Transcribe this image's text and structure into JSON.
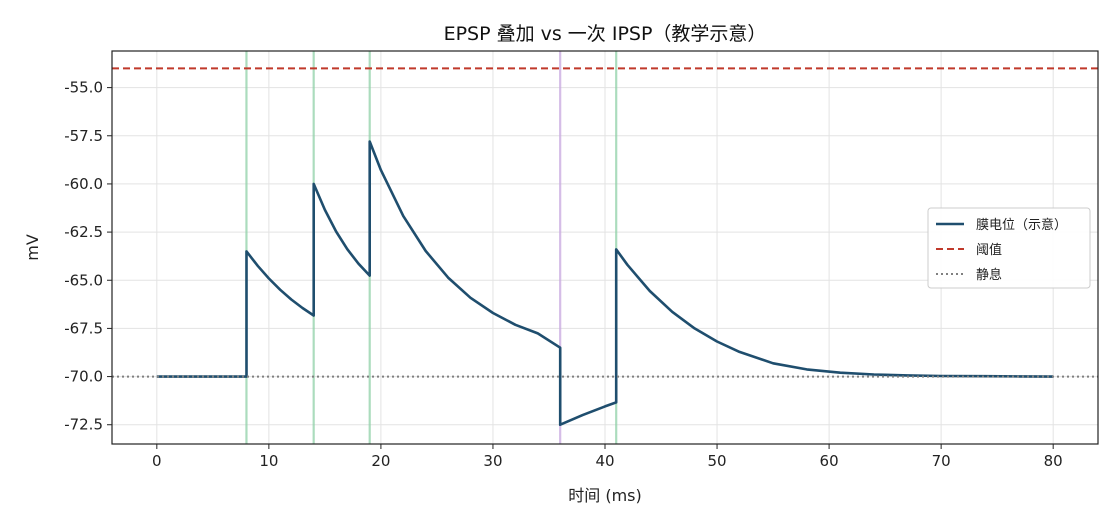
{
  "chart_data": {
    "type": "line",
    "title": "EPSP 叠加 vs 一次 IPSP（教学示意）",
    "xlabel": "时间 (ms)",
    "ylabel": "mV",
    "xlim": [
      -4,
      84
    ],
    "ylim": [
      -73.5,
      -53.1
    ],
    "x_ticks": [
      0,
      10,
      20,
      30,
      40,
      50,
      60,
      70,
      80
    ],
    "x_tick_labels": [
      "0",
      "10",
      "20",
      "30",
      "40",
      "50",
      "60",
      "70",
      "80"
    ],
    "y_ticks": [
      -55.0,
      -57.5,
      -60.0,
      -62.5,
      -65.0,
      -67.5,
      -70.0,
      -72.5
    ],
    "y_tick_labels": [
      "-55.0",
      "-57.5",
      "-60.0",
      "-62.5",
      "-65.0",
      "-67.5",
      "-70.0",
      "-72.5"
    ],
    "grid": true,
    "legend_position": "center-right",
    "series": [
      {
        "name": "膜电位（示意）",
        "color": "#1f4e6e",
        "style": "solid",
        "x": [
          0,
          8,
          8,
          9,
          10,
          11,
          12,
          13,
          14,
          14,
          15,
          16,
          17,
          18,
          19,
          19,
          20,
          22,
          24,
          26,
          28,
          30,
          32,
          34,
          36,
          36,
          38,
          40,
          41,
          41,
          42,
          44,
          46,
          48,
          50,
          52,
          55,
          58,
          61,
          64,
          67,
          70,
          74,
          77,
          80
        ],
        "y": [
          -70.0,
          -70.0,
          -63.5,
          -64.25,
          -64.91,
          -65.49,
          -66.0,
          -66.44,
          -66.83,
          -60.0,
          -61.35,
          -62.47,
          -63.39,
          -64.14,
          -64.76,
          -57.8,
          -59.28,
          -61.67,
          -63.48,
          -64.86,
          -65.91,
          -66.7,
          -67.31,
          -67.76,
          -68.5,
          -72.5,
          -72.0,
          -71.55,
          -71.34,
          -63.4,
          -64.2,
          -65.56,
          -66.64,
          -67.5,
          -68.18,
          -68.72,
          -69.31,
          -69.63,
          -69.8,
          -69.89,
          -69.94,
          -69.97,
          -69.98,
          -69.99,
          -70.0
        ]
      },
      {
        "name": "阈值",
        "color": "#c0392b",
        "style": "dashed",
        "y_constant": -54.0
      },
      {
        "name": "静息",
        "color": "#808080",
        "style": "dotted",
        "y_constant": -70.0
      }
    ],
    "markers": [
      {
        "x": 8,
        "kind": "EPSP",
        "color": "#8fd1a8"
      },
      {
        "x": 14,
        "kind": "EPSP",
        "color": "#8fd1a8"
      },
      {
        "x": 19,
        "kind": "EPSP",
        "color": "#8fd1a8"
      },
      {
        "x": 36,
        "kind": "IPSP",
        "color": "#c8a8e0"
      },
      {
        "x": 41,
        "kind": "EPSP",
        "color": "#8fd1a8"
      }
    ]
  }
}
